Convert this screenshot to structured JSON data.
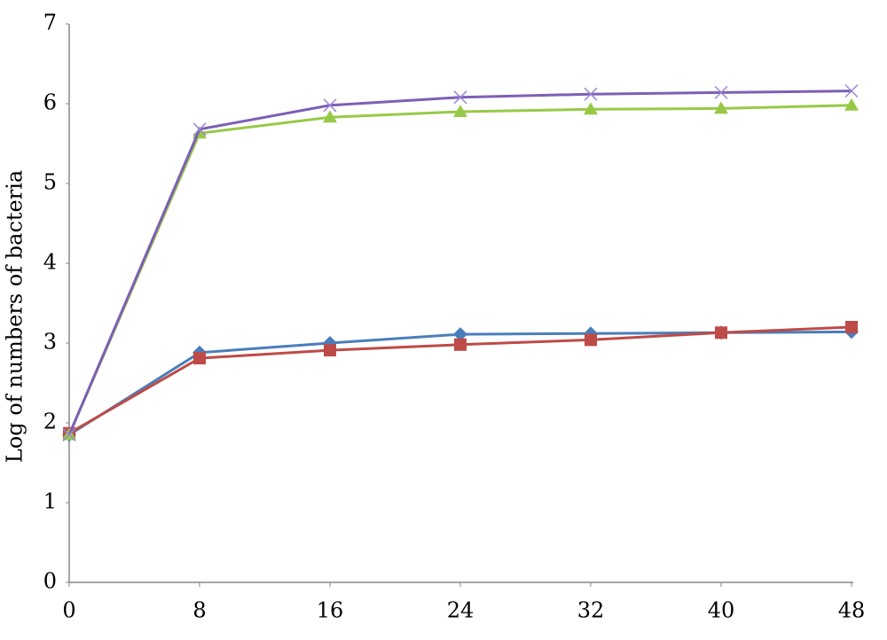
{
  "chart_data": {
    "type": "line",
    "y_label": "Log of numbers of bacteria",
    "x": [
      0,
      8,
      16,
      24,
      32,
      40,
      48
    ],
    "xlim": [
      0,
      48
    ],
    "xticks": [
      0,
      8,
      16,
      24,
      32,
      40,
      48
    ],
    "ylim": [
      0,
      7
    ],
    "yticks": [
      0,
      1,
      2,
      3,
      4,
      5,
      6,
      7
    ],
    "grid": false,
    "series": [
      {
        "color": "#4a7ebb",
        "marker": "diamond",
        "values": [
          1.85,
          2.88,
          3.0,
          3.11,
          3.12,
          3.13,
          3.14
        ]
      },
      {
        "color": "#be4b48",
        "marker": "square",
        "values": [
          1.87,
          2.81,
          2.91,
          2.98,
          3.04,
          3.13,
          3.2
        ]
      },
      {
        "color": "#98c946",
        "marker": "triangle",
        "values": [
          1.85,
          5.63,
          5.83,
          5.9,
          5.93,
          5.94,
          5.98
        ]
      },
      {
        "color": "#7d5fb6",
        "marker": "x",
        "values": [
          1.85,
          5.68,
          5.98,
          6.08,
          6.12,
          6.14,
          6.16
        ]
      }
    ]
  }
}
